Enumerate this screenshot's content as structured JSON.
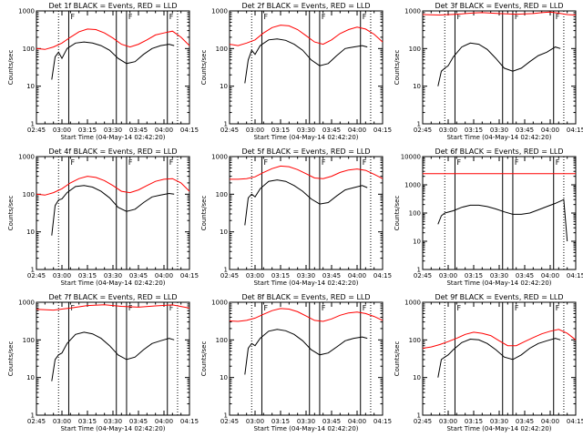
{
  "figure": {
    "xlabel": "Start Time (04-May-14 02:42:20)",
    "ylabel": "Counts/sec",
    "x_tick_labels": [
      "02:45",
      "03:00",
      "03:15",
      "03:30",
      "03:45",
      "04:00",
      "04:15"
    ],
    "y_tick_labels": [
      "1",
      "10",
      "100",
      "1000"
    ],
    "colors": {
      "events": "#000000",
      "lld": "#ff0000",
      "axes": "#000000"
    }
  },
  "chart_data": [
    {
      "type": "line",
      "title": "Det 1f BLACK = Events, RED = LLD",
      "ylim": [
        1,
        1000
      ],
      "yscale": "log",
      "markers": [
        "F",
        "F",
        "F"
      ],
      "solid_lines": [
        "03:04",
        "03:32",
        "03:38",
        "04:02"
      ],
      "dotted_lines": [
        "02:58",
        "04:08"
      ],
      "series": [
        {
          "name": "Events",
          "color": "#000000",
          "x": [
            "02:54",
            "02:56",
            "02:58",
            "03:00",
            "03:03",
            "03:08",
            "03:13",
            "03:18",
            "03:23",
            "03:28",
            "03:33",
            "03:38",
            "03:43",
            "03:48",
            "03:53",
            "03:58",
            "04:03",
            "04:06"
          ],
          "y": [
            15,
            60,
            80,
            55,
            100,
            140,
            150,
            140,
            120,
            90,
            55,
            40,
            45,
            70,
            100,
            120,
            130,
            120
          ]
        },
        {
          "name": "LLD",
          "color": "#ff0000",
          "x": [
            "02:45",
            "02:50",
            "02:55",
            "03:00",
            "03:05",
            "03:10",
            "03:15",
            "03:20",
            "03:25",
            "03:30",
            "03:35",
            "03:40",
            "03:45",
            "03:50",
            "03:55",
            "04:00",
            "04:05",
            "04:10",
            "04:15"
          ],
          "y": [
            100,
            95,
            110,
            140,
            200,
            280,
            330,
            320,
            260,
            190,
            130,
            110,
            130,
            170,
            230,
            260,
            290,
            200,
            120
          ]
        }
      ]
    },
    {
      "type": "line",
      "title": "Det 2f BLACK = Events, RED = LLD",
      "ylim": [
        1,
        1000
      ],
      "yscale": "log",
      "markers": [
        "F",
        "F",
        "F"
      ],
      "solid_lines": [
        "03:04",
        "03:32",
        "03:38",
        "04:02"
      ],
      "dotted_lines": [
        "02:58",
        "04:08"
      ],
      "series": [
        {
          "name": "Events",
          "color": "#000000",
          "x": [
            "02:54",
            "02:56",
            "02:58",
            "03:00",
            "03:03",
            "03:08",
            "03:13",
            "03:18",
            "03:23",
            "03:28",
            "03:33",
            "03:38",
            "03:43",
            "03:48",
            "03:53",
            "03:58",
            "04:03",
            "04:06"
          ],
          "y": [
            12,
            50,
            90,
            70,
            120,
            170,
            180,
            165,
            130,
            90,
            50,
            35,
            40,
            65,
            100,
            110,
            120,
            110
          ]
        },
        {
          "name": "LLD",
          "color": "#ff0000",
          "x": [
            "02:45",
            "02:50",
            "02:55",
            "03:00",
            "03:05",
            "03:10",
            "03:15",
            "03:20",
            "03:25",
            "03:30",
            "03:35",
            "03:40",
            "03:45",
            "03:50",
            "03:55",
            "04:00",
            "04:05",
            "04:10",
            "04:15"
          ],
          "y": [
            130,
            120,
            140,
            170,
            260,
            360,
            420,
            400,
            320,
            220,
            150,
            130,
            170,
            250,
            320,
            370,
            330,
            240,
            150
          ]
        }
      ]
    },
    {
      "type": "line",
      "title": "Det 3f BLACK = Events, RED = LLD",
      "ylim": [
        1,
        1000
      ],
      "yscale": "log",
      "markers": [
        "F",
        "F",
        "F"
      ],
      "solid_lines": [
        "03:04",
        "03:32",
        "03:38",
        "04:02"
      ],
      "dotted_lines": [
        "02:58",
        "04:08"
      ],
      "series": [
        {
          "name": "Events",
          "color": "#000000",
          "x": [
            "02:54",
            "02:56",
            "02:58",
            "03:00",
            "03:03",
            "03:08",
            "03:13",
            "03:18",
            "03:23",
            "03:28",
            "03:33",
            "03:38",
            "03:43",
            "03:48",
            "03:53",
            "03:58",
            "04:03",
            "04:06"
          ],
          "y": [
            10,
            25,
            30,
            35,
            60,
            110,
            140,
            130,
            95,
            55,
            30,
            25,
            30,
            45,
            65,
            80,
            110,
            100
          ]
        },
        {
          "name": "LLD",
          "color": "#ff0000",
          "x": [
            "02:45",
            "02:55",
            "03:05",
            "03:15",
            "03:20",
            "03:30",
            "03:40",
            "03:50",
            "03:55",
            "04:00",
            "04:05",
            "04:10",
            "04:15"
          ],
          "y": [
            800,
            780,
            820,
            880,
            900,
            850,
            820,
            850,
            900,
            930,
            870,
            800,
            780
          ]
        }
      ]
    },
    {
      "type": "line",
      "title": "Det 4f BLACK = Events, RED = LLD",
      "ylim": [
        1,
        1000
      ],
      "yscale": "log",
      "markers": [
        "F",
        "F",
        "F"
      ],
      "solid_lines": [
        "03:04",
        "03:32",
        "03:38",
        "04:02"
      ],
      "dotted_lines": [
        "02:58",
        "04:08"
      ],
      "series": [
        {
          "name": "Events",
          "color": "#000000",
          "x": [
            "02:54",
            "02:56",
            "02:58",
            "03:00",
            "03:03",
            "03:08",
            "03:13",
            "03:18",
            "03:23",
            "03:28",
            "03:33",
            "03:38",
            "03:43",
            "03:48",
            "03:53",
            "03:58",
            "04:03",
            "04:06"
          ],
          "y": [
            8,
            50,
            70,
            75,
            110,
            160,
            170,
            155,
            120,
            80,
            45,
            35,
            40,
            60,
            85,
            95,
            105,
            100
          ]
        },
        {
          "name": "LLD",
          "color": "#ff0000",
          "x": [
            "02:45",
            "02:50",
            "02:55",
            "03:00",
            "03:05",
            "03:10",
            "03:15",
            "03:20",
            "03:25",
            "03:30",
            "03:35",
            "03:40",
            "03:45",
            "03:50",
            "03:55",
            "04:00",
            "04:05",
            "04:10",
            "04:15"
          ],
          "y": [
            100,
            95,
            110,
            140,
            200,
            260,
            300,
            280,
            230,
            170,
            120,
            110,
            130,
            170,
            220,
            250,
            260,
            200,
            120
          ]
        }
      ]
    },
    {
      "type": "line",
      "title": "Det 5f BLACK = Events, RED = LLD",
      "ylim": [
        1,
        1000
      ],
      "yscale": "log",
      "markers": [
        "F",
        "F",
        "F"
      ],
      "solid_lines": [
        "03:04",
        "03:32",
        "03:38",
        "04:02"
      ],
      "dotted_lines": [
        "02:58",
        "04:08"
      ],
      "series": [
        {
          "name": "Events",
          "color": "#000000",
          "x": [
            "02:54",
            "02:56",
            "02:58",
            "03:00",
            "03:03",
            "03:08",
            "03:13",
            "03:18",
            "03:23",
            "03:28",
            "03:33",
            "03:38",
            "03:43",
            "03:48",
            "03:53",
            "03:58",
            "04:03",
            "04:06"
          ],
          "y": [
            15,
            80,
            100,
            85,
            140,
            220,
            240,
            220,
            170,
            120,
            75,
            55,
            60,
            90,
            130,
            150,
            170,
            150
          ]
        },
        {
          "name": "LLD",
          "color": "#ff0000",
          "x": [
            "02:45",
            "02:50",
            "02:55",
            "03:00",
            "03:05",
            "03:10",
            "03:15",
            "03:20",
            "03:25",
            "03:30",
            "03:35",
            "03:40",
            "03:45",
            "03:50",
            "03:55",
            "04:00",
            "04:05",
            "04:10",
            "04:15"
          ],
          "y": [
            250,
            250,
            260,
            290,
            380,
            480,
            560,
            540,
            450,
            350,
            270,
            260,
            300,
            380,
            440,
            470,
            430,
            340,
            260
          ]
        }
      ]
    },
    {
      "type": "line",
      "title": "Det 6f BLACK = Events, RED = LLD",
      "ylim": [
        1,
        10000
      ],
      "yscale": "log",
      "markers": [
        "F",
        "F",
        "F"
      ],
      "solid_lines": [
        "03:04",
        "03:32",
        "03:38",
        "04:02"
      ],
      "dotted_lines": [
        "02:58",
        "04:08"
      ],
      "series": [
        {
          "name": "Events",
          "color": "#000000",
          "x": [
            "02:54",
            "02:56",
            "02:58",
            "03:03",
            "03:08",
            "03:13",
            "03:18",
            "03:23",
            "03:28",
            "03:33",
            "03:38",
            "03:43",
            "03:48",
            "03:53",
            "03:58",
            "04:03",
            "04:08",
            "04:10"
          ],
          "y": [
            40,
            80,
            100,
            120,
            160,
            190,
            190,
            170,
            140,
            110,
            90,
            90,
            100,
            130,
            170,
            220,
            300,
            10
          ]
        },
        {
          "name": "LLD",
          "color": "#ff0000",
          "x": [
            "02:45",
            "04:15"
          ],
          "y": [
            2500,
            2500
          ]
        }
      ]
    },
    {
      "type": "line",
      "title": "Det 7f BLACK = Events, RED = LLD",
      "ylim": [
        1,
        1000
      ],
      "yscale": "log",
      "markers": [
        "F",
        "F",
        "F"
      ],
      "solid_lines": [
        "03:04",
        "03:32",
        "03:38",
        "04:02"
      ],
      "dotted_lines": [
        "02:58",
        "04:08"
      ],
      "series": [
        {
          "name": "Events",
          "color": "#000000",
          "x": [
            "02:54",
            "02:56",
            "02:58",
            "03:00",
            "03:03",
            "03:08",
            "03:13",
            "03:18",
            "03:23",
            "03:28",
            "03:33",
            "03:38",
            "03:43",
            "03:48",
            "03:53",
            "03:58",
            "04:03",
            "04:06"
          ],
          "y": [
            8,
            30,
            40,
            45,
            80,
            140,
            160,
            145,
            110,
            70,
            40,
            30,
            35,
            55,
            80,
            95,
            110,
            100
          ]
        },
        {
          "name": "LLD",
          "color": "#ff0000",
          "x": [
            "02:45",
            "02:55",
            "03:05",
            "03:15",
            "03:25",
            "03:35",
            "03:45",
            "03:55",
            "04:05",
            "04:15"
          ],
          "y": [
            650,
            620,
            700,
            820,
            860,
            780,
            740,
            800,
            850,
            700
          ]
        }
      ]
    },
    {
      "type": "line",
      "title": "Det 8f BLACK = Events, RED = LLD",
      "ylim": [
        1,
        1000
      ],
      "yscale": "log",
      "markers": [
        "F",
        "F",
        "F"
      ],
      "solid_lines": [
        "03:04",
        "03:32",
        "03:38",
        "04:02"
      ],
      "dotted_lines": [
        "02:58",
        "04:08"
      ],
      "series": [
        {
          "name": "Events",
          "color": "#000000",
          "x": [
            "02:54",
            "02:56",
            "02:58",
            "03:00",
            "03:03",
            "03:08",
            "03:13",
            "03:18",
            "03:23",
            "03:28",
            "03:33",
            "03:38",
            "03:43",
            "03:48",
            "03:53",
            "03:58",
            "04:03",
            "04:06"
          ],
          "y": [
            12,
            60,
            80,
            70,
            110,
            170,
            190,
            175,
            140,
            95,
            55,
            40,
            45,
            65,
            95,
            110,
            120,
            110
          ]
        },
        {
          "name": "LLD",
          "color": "#ff0000",
          "x": [
            "02:45",
            "02:50",
            "02:55",
            "03:00",
            "03:05",
            "03:10",
            "03:15",
            "03:20",
            "03:25",
            "03:30",
            "03:35",
            "03:40",
            "03:45",
            "03:50",
            "03:55",
            "04:00",
            "04:05",
            "04:10",
            "04:15"
          ],
          "y": [
            320,
            310,
            330,
            380,
            480,
            600,
            680,
            660,
            560,
            430,
            330,
            310,
            360,
            450,
            520,
            550,
            500,
            420,
            330
          ]
        }
      ]
    },
    {
      "type": "line",
      "title": "Det 9f BLACK = Events, RED = LLD",
      "ylim": [
        1,
        1000
      ],
      "yscale": "log",
      "markers": [
        "F",
        "F",
        "F"
      ],
      "solid_lines": [
        "03:04",
        "03:32",
        "03:38",
        "04:02"
      ],
      "dotted_lines": [
        "02:58",
        "04:08"
      ],
      "series": [
        {
          "name": "Events",
          "color": "#000000",
          "x": [
            "02:54",
            "02:56",
            "02:58",
            "03:00",
            "03:03",
            "03:08",
            "03:13",
            "03:18",
            "03:23",
            "03:28",
            "03:33",
            "03:38",
            "03:43",
            "03:48",
            "03:53",
            "03:58",
            "04:03",
            "04:06"
          ],
          "y": [
            10,
            30,
            35,
            40,
            55,
            85,
            105,
            100,
            80,
            55,
            35,
            30,
            40,
            60,
            80,
            95,
            110,
            100
          ]
        },
        {
          "name": "LLD",
          "color": "#ff0000",
          "x": [
            "02:45",
            "02:50",
            "02:55",
            "03:00",
            "03:05",
            "03:10",
            "03:15",
            "03:20",
            "03:25",
            "03:30",
            "03:35",
            "03:40",
            "03:45",
            "03:50",
            "03:55",
            "04:00",
            "04:05",
            "04:10",
            "04:15"
          ],
          "y": [
            60,
            65,
            75,
            90,
            110,
            140,
            160,
            150,
            130,
            95,
            70,
            70,
            90,
            115,
            145,
            170,
            190,
            150,
            100
          ]
        }
      ]
    }
  ]
}
